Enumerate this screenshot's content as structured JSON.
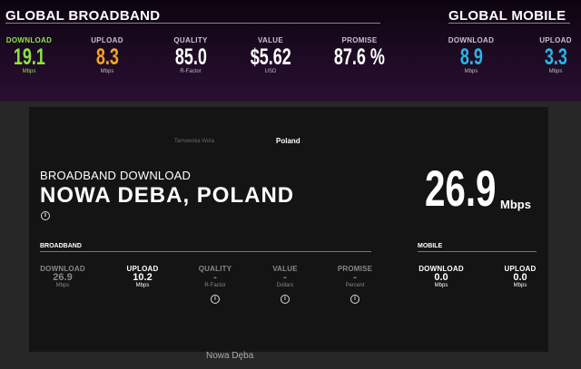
{
  "global_broadband": {
    "title": "GLOBAL BROADBAND",
    "stats": [
      {
        "label": "DOWNLOAD",
        "value": "19.1",
        "unit": "Mbps",
        "color": "#8ee53f"
      },
      {
        "label": "UPLOAD",
        "value": "8.3",
        "unit": "Mbps",
        "color": "#f5a623"
      },
      {
        "label": "QUALITY",
        "value": "85.0",
        "unit": "R-Factor",
        "color": "#ffffff"
      },
      {
        "label": "VALUE",
        "value": "$5.62",
        "unit": "USD",
        "color": "#ffffff"
      },
      {
        "label": "PROMISE",
        "value": "87.6 %",
        "unit": "",
        "color": "#ffffff"
      }
    ]
  },
  "global_mobile": {
    "title": "GLOBAL MOBILE",
    "stats": [
      {
        "label": "DOWNLOAD",
        "value": "8.9",
        "unit": "Mbps",
        "color": "#29b6e8"
      },
      {
        "label": "UPLOAD",
        "value": "3.3",
        "unit": "Mbps",
        "color": "#29b6e8"
      }
    ]
  },
  "map": {
    "labels": {
      "country": "Poland",
      "town1": "Tarnowska Wola",
      "town2": "Nowa Dęba"
    }
  },
  "detail": {
    "subtitle": "BROADBAND DOWNLOAD",
    "title": "NOWA DEBA, POLAND",
    "big_value": "26.9",
    "big_unit": "Mbps",
    "broadband": {
      "title": "BROADBAND",
      "stats": [
        {
          "label": "DOWNLOAD",
          "value": "26.9",
          "unit": "Mbps"
        },
        {
          "label": "UPLOAD",
          "value": "10.2",
          "unit": "Mbps"
        },
        {
          "label": "QUALITY",
          "value": "-",
          "unit": "R-Factor"
        },
        {
          "label": "VALUE",
          "value": "-",
          "unit": "Dollars"
        },
        {
          "label": "PROMISE",
          "value": "-",
          "unit": "Percent"
        }
      ]
    },
    "mobile": {
      "title": "MOBILE",
      "stats": [
        {
          "label": "DOWNLOAD",
          "value": "0.0",
          "unit": "Mbps"
        },
        {
          "label": "UPLOAD",
          "value": "0.0",
          "unit": "Mbps"
        }
      ]
    }
  }
}
